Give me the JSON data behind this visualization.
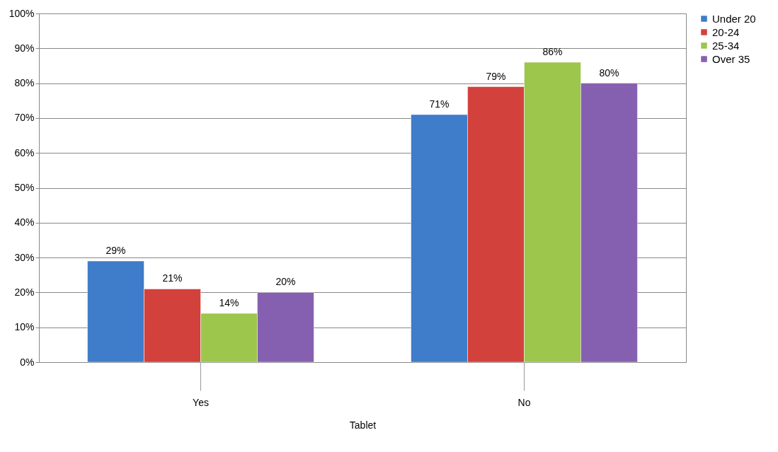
{
  "chart_data": {
    "type": "bar",
    "categories": [
      "Yes",
      "No"
    ],
    "xlabel": "Tablet",
    "series": [
      {
        "name": "Under 20",
        "color": "#3f7cc9",
        "values": [
          29,
          71
        ],
        "value_labels": [
          "29%",
          "71%"
        ]
      },
      {
        "name": "20-24",
        "color": "#d3413c",
        "values": [
          21,
          79
        ],
        "value_labels": [
          "21%",
          "79%"
        ]
      },
      {
        "name": "25-34",
        "color": "#9cc64c",
        "values": [
          14,
          86
        ],
        "value_labels": [
          "14%",
          "86%"
        ]
      },
      {
        "name": "Over 35",
        "color": "#8660b0",
        "values": [
          20,
          80
        ],
        "value_labels": [
          "20%",
          "80%"
        ]
      }
    ],
    "ylim": [
      0,
      100
    ],
    "yticks": [
      {
        "value": 0,
        "label": "0%"
      },
      {
        "value": 10,
        "label": "10%"
      },
      {
        "value": 20,
        "label": "20%"
      },
      {
        "value": 30,
        "label": "30%"
      },
      {
        "value": 40,
        "label": "40%"
      },
      {
        "value": 50,
        "label": "50%"
      },
      {
        "value": 60,
        "label": "60%"
      },
      {
        "value": 70,
        "label": "70%"
      },
      {
        "value": 80,
        "label": "80%"
      },
      {
        "value": 90,
        "label": "90%"
      },
      {
        "value": 100,
        "label": "100%"
      }
    ],
    "grid": "y",
    "legend": "right"
  }
}
